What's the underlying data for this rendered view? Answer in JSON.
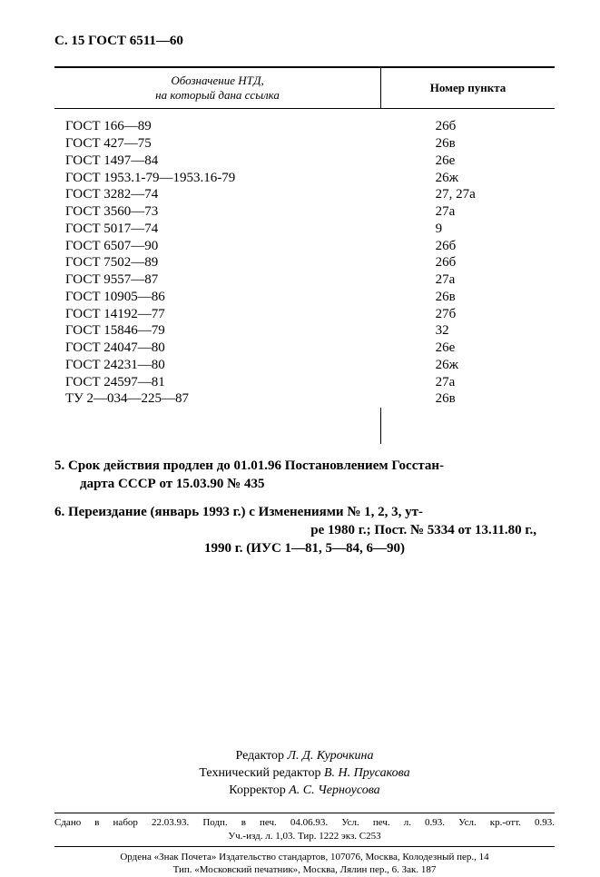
{
  "header": "С. 15 ГОСТ 6511—60",
  "table": {
    "col1_header_line1": "Обозначение НТД,",
    "col1_header_line2": "на который дана ссылка",
    "col2_header": "Номер пункта",
    "rows": [
      {
        "ref": "ГОСТ 166—89",
        "pt": "26б"
      },
      {
        "ref": "ГОСТ 427—75",
        "pt": "26в"
      },
      {
        "ref": "ГОСТ 1497—84",
        "pt": "26е"
      },
      {
        "ref": "ГОСТ 1953.1-79—1953.16-79",
        "pt": "26ж"
      },
      {
        "ref": "ГОСТ 3282—74",
        "pt": "27, 27а"
      },
      {
        "ref": "ГОСТ 3560—73",
        "pt": "27а"
      },
      {
        "ref": "ГОСТ 5017—74",
        "pt": "9"
      },
      {
        "ref": "ГОСТ 6507—90",
        "pt": "26б"
      },
      {
        "ref": "ГОСТ 7502—89",
        "pt": "26б"
      },
      {
        "ref": "ГОСТ 9557—87",
        "pt": "27а"
      },
      {
        "ref": "ГОСТ 10905—86",
        "pt": "26в"
      },
      {
        "ref": "ГОСТ 14192—77",
        "pt": "27б"
      },
      {
        "ref": "ГОСТ 15846—79",
        "pt": "32"
      },
      {
        "ref": "ГОСТ 24047—80",
        "pt": "26е"
      },
      {
        "ref": "ГОСТ 24231—80",
        "pt": "26ж"
      },
      {
        "ref": "ГОСТ 24597—81",
        "pt": "27а"
      },
      {
        "ref": "ТУ 2—034—225—87",
        "pt": "26в"
      }
    ]
  },
  "item5_line1": "5. Срок действия продлен до 01.01.96 Постановлением Госстан-",
  "item5_line2": "дарта СССР от 15.03.90 № 435",
  "item6_line1": "6. Переиздание (январь 1993 г.) с Изменениями № 1, 2, 3, ут-",
  "item6_line2": "ре 1980 г.; Пост. № 5334 от 13.11.80 г.,",
  "item6_line3": "1990 г. (ИУС 1—81, 5—84, 6—90)",
  "credits": {
    "editor_prefix": "Редактор ",
    "editor": "Л. Д. Курочкина",
    "tech_editor_prefix": "Технический редактор ",
    "tech_editor": "В. Н. Прусакова",
    "corrector_prefix": "Корректор ",
    "corrector": "А. С. Черноусова"
  },
  "imprint_line1": "Сдано в набор 22.03.93.   Подп. в печ.  04.06.93.   Усл. печ. л. 0.93.   Усл. кр.-отт.  0.93.",
  "imprint_line2": "Уч.-изд. л. 1,03.    Тир. 1222 экз.    С253",
  "publisher_line1": "Ордена «Знак Почета» Издательство стандартов, 107076, Москва, Колодезный пер., 14",
  "publisher_line2": "Тип. «Московский печатник», Москва, Лялин пер., 6. Зак. 187"
}
